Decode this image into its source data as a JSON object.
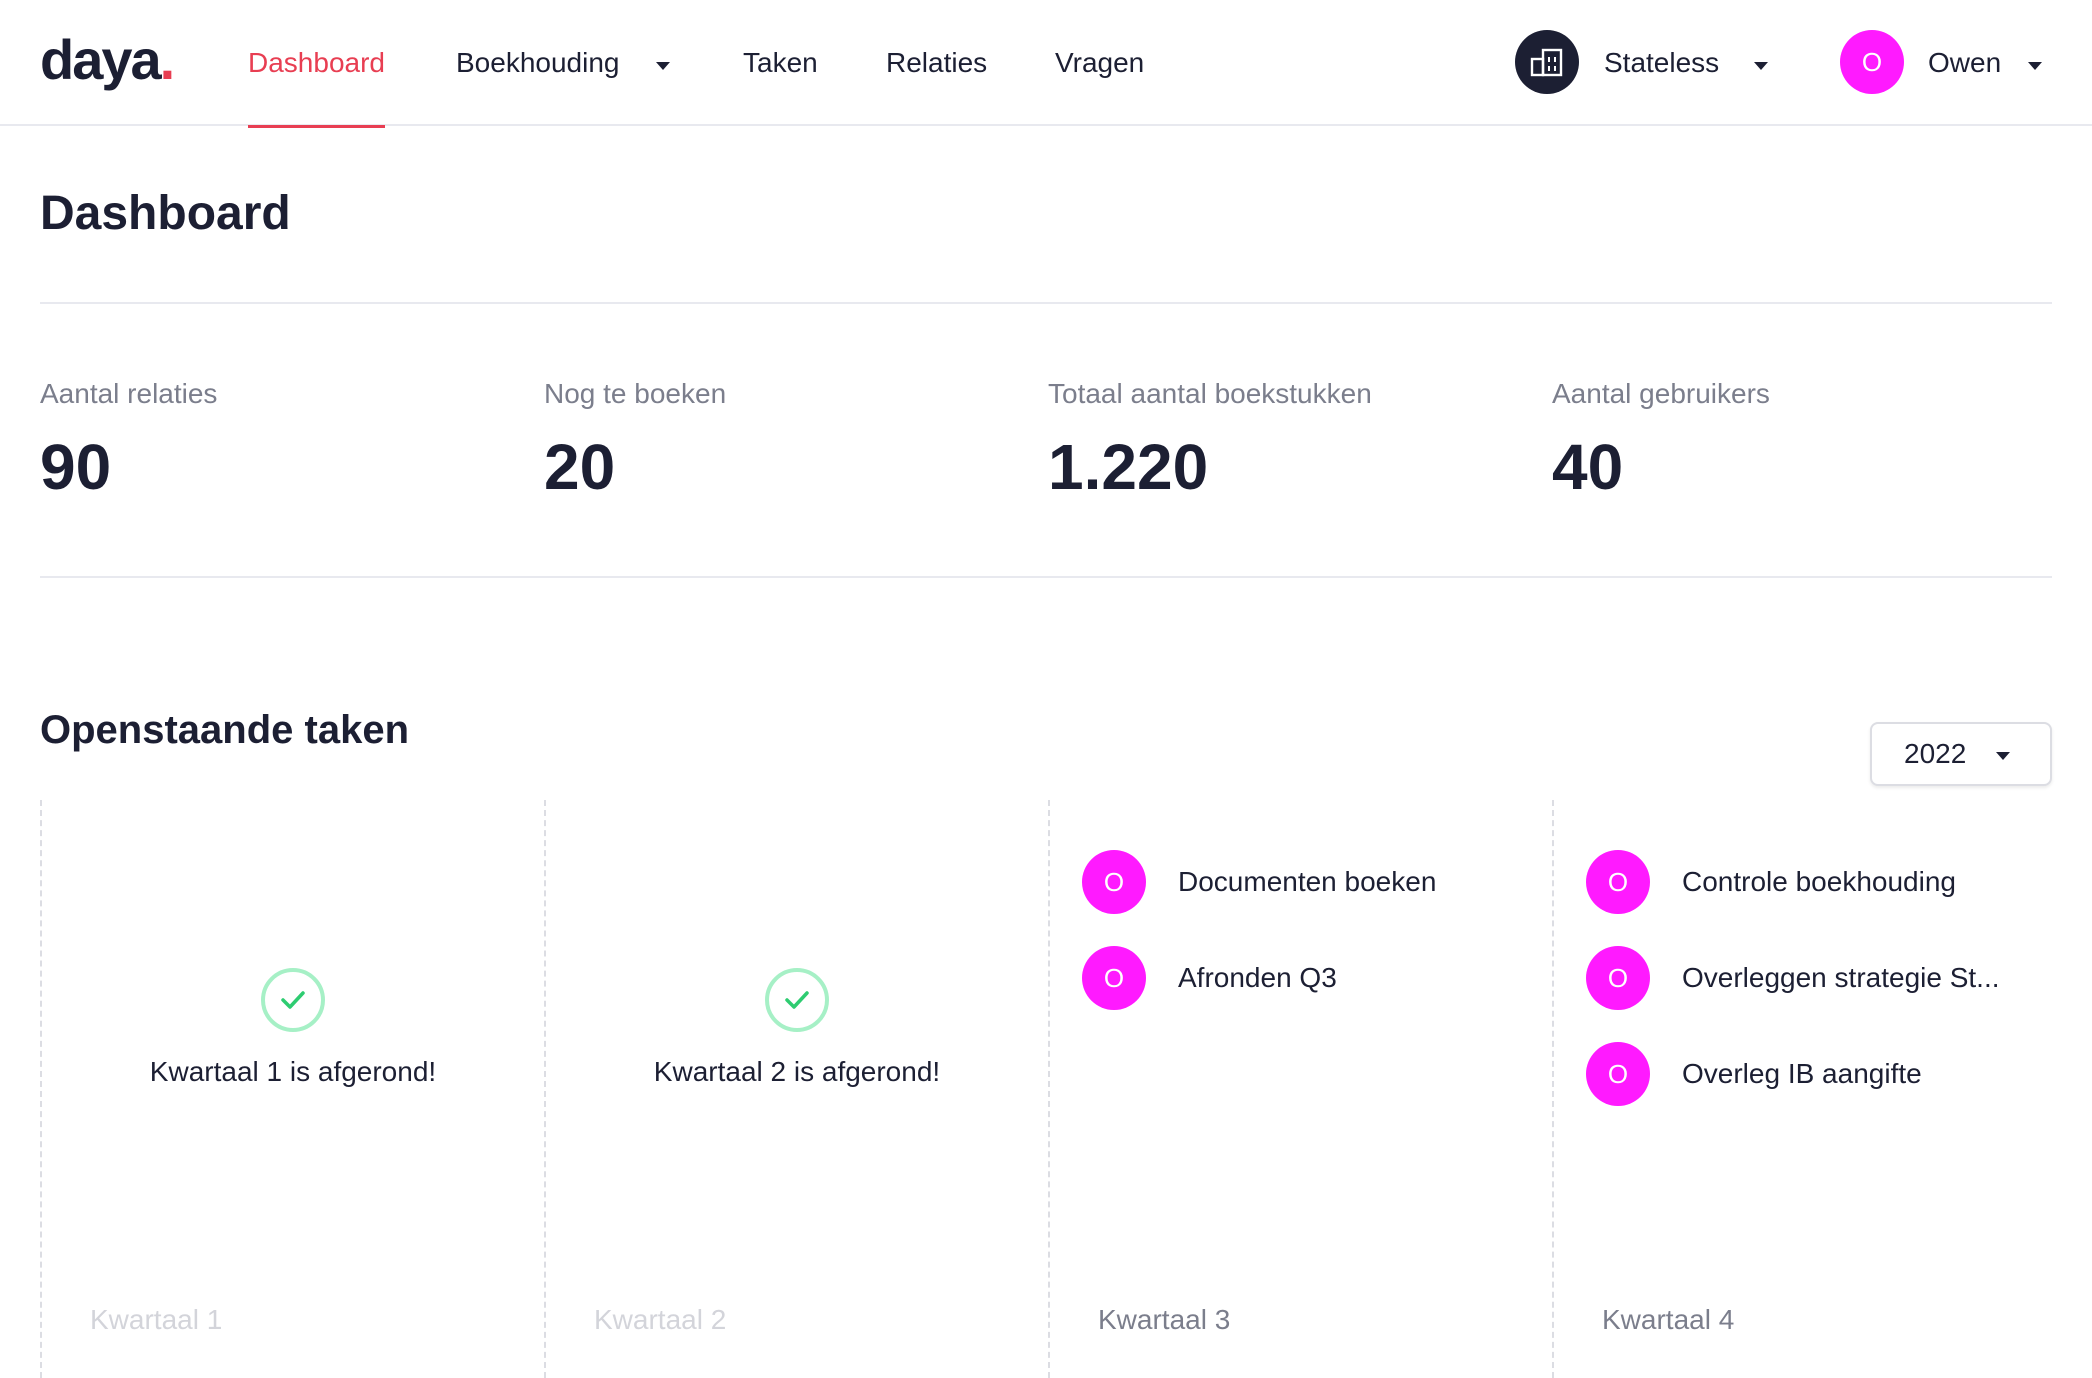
{
  "logo": {
    "text": "daya",
    "dot": "."
  },
  "nav": {
    "items": [
      {
        "label": "Dashboard",
        "active": true
      },
      {
        "label": "Boekhouding",
        "has_dropdown": true
      },
      {
        "label": "Taken"
      },
      {
        "label": "Relaties"
      },
      {
        "label": "Vragen"
      }
    ],
    "organization": {
      "name": "Stateless",
      "icon": "building-icon"
    },
    "user": {
      "initial": "O",
      "name": "Owen"
    }
  },
  "page": {
    "title": "Dashboard"
  },
  "stats": [
    {
      "label": "Aantal relaties",
      "value": "90"
    },
    {
      "label": "Nog te boeken",
      "value": "20"
    },
    {
      "label": "Totaal aantal boekstukken",
      "value": "1.220"
    },
    {
      "label": "Aantal gebruikers",
      "value": "40"
    }
  ],
  "tasks_section": {
    "title": "Openstaande taken",
    "year": "2022",
    "quarters": [
      {
        "label": "Kwartaal 1",
        "completed": true,
        "completed_text": "Kwartaal 1 is afgerond!",
        "tasks": []
      },
      {
        "label": "Kwartaal 2",
        "completed": true,
        "completed_text": "Kwartaal 2 is afgerond!",
        "tasks": []
      },
      {
        "label": "Kwartaal 3",
        "completed": false,
        "tasks": [
          {
            "assignee": "O",
            "title": "Documenten boeken"
          },
          {
            "assignee": "O",
            "title": "Afronden Q3"
          }
        ]
      },
      {
        "label": "Kwartaal 4",
        "completed": false,
        "tasks": [
          {
            "assignee": "O",
            "title": "Controle boekhouding"
          },
          {
            "assignee": "O",
            "title": "Overleggen strategie St..."
          },
          {
            "assignee": "O",
            "title": "Overleg IB aangifte"
          }
        ]
      }
    ]
  },
  "colors": {
    "accent": "#e83e52",
    "text": "#1c1f33",
    "muted": "#7b7e8c",
    "avatar": "#ff1aff",
    "success": "#2ecc71",
    "divider": "#e8e9ef"
  }
}
